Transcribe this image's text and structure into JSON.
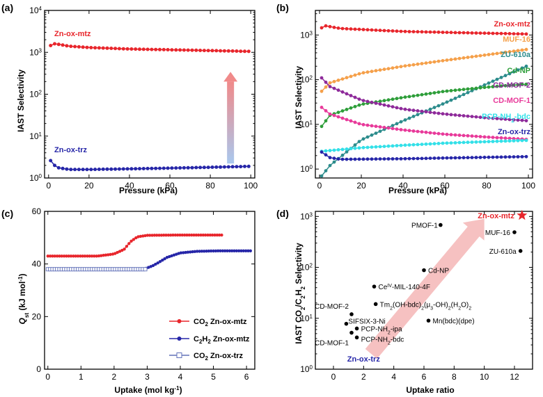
{
  "chart_data": [
    {
      "type": "line",
      "panel": "(a)",
      "xlabel": "Pressure (kPa)",
      "ylabel": "IAST Selectivity",
      "xlim": [
        -2,
        102
      ],
      "ylim_log10": [
        0,
        4
      ],
      "xticks": [
        0,
        20,
        40,
        60,
        80,
        100
      ],
      "yticks": [
        {
          "exp": 0,
          "label": "10^0"
        },
        {
          "exp": 1,
          "label": "10^1"
        },
        {
          "exp": 2,
          "label": "10^2"
        },
        {
          "exp": 3,
          "label": "10^3"
        },
        {
          "exp": 4,
          "label": "10^4"
        }
      ],
      "series": [
        {
          "name": "Zn-ox-mtz",
          "color": "#e8262c",
          "points": [
            [
              1,
              1450
            ],
            [
              3,
              1600
            ],
            [
              5,
              1550
            ],
            [
              10,
              1400
            ],
            [
              20,
              1300
            ],
            [
              40,
              1200
            ],
            [
              60,
              1150
            ],
            [
              80,
              1100
            ],
            [
              100,
              1050
            ]
          ]
        },
        {
          "name": "Zn-ox-trz",
          "color": "#2626a8",
          "points": [
            [
              1,
              2.6
            ],
            [
              3,
              2.0
            ],
            [
              5,
              1.75
            ],
            [
              10,
              1.6
            ],
            [
              20,
              1.6
            ],
            [
              40,
              1.65
            ],
            [
              60,
              1.72
            ],
            [
              80,
              1.8
            ],
            [
              100,
              1.9
            ]
          ]
        }
      ],
      "annotation": "gradient arrow from Zn-ox-trz up to Zn-ox-mtz at ~90 kPa"
    },
    {
      "type": "line",
      "panel": "(b)",
      "xlabel": "Pressure (kPa)",
      "ylabel": "IAST Selectivity",
      "xlim": [
        -2,
        102
      ],
      "ylim_log10": [
        -0.2,
        3.55
      ],
      "xticks": [
        0,
        20,
        40,
        60,
        80,
        100
      ],
      "yticks": [
        {
          "exp": 0,
          "label": "10^0"
        },
        {
          "exp": 1,
          "label": "10^1"
        },
        {
          "exp": 2,
          "label": "10^2"
        },
        {
          "exp": 3,
          "label": "10^3"
        }
      ],
      "series": [
        {
          "name": "Zn-ox-mtz",
          "color": "#e8262c",
          "points": [
            [
              1,
              1450
            ],
            [
              3,
              1600
            ],
            [
              10,
              1400
            ],
            [
              40,
              1200
            ],
            [
              70,
              1120
            ],
            [
              100,
              1050
            ]
          ]
        },
        {
          "name": "MUF-16",
          "color": "#f5a04a",
          "points": [
            [
              1,
              55
            ],
            [
              5,
              85
            ],
            [
              20,
              140
            ],
            [
              40,
              200
            ],
            [
              60,
              270
            ],
            [
              80,
              360
            ],
            [
              100,
              480
            ]
          ]
        },
        {
          "name": "ZU-610a",
          "color": "#2c8c8c",
          "points": [
            [
              1,
              0.7
            ],
            [
              5,
              1.2
            ],
            [
              20,
              4.5
            ],
            [
              40,
              12
            ],
            [
              60,
              30
            ],
            [
              80,
              80
            ],
            [
              100,
              210
            ]
          ]
        },
        {
          "name": "Cd-NP",
          "color": "#2e9e3a",
          "points": [
            [
              1,
              9
            ],
            [
              5,
              16
            ],
            [
              20,
              28
            ],
            [
              40,
              40
            ],
            [
              60,
              55
            ],
            [
              80,
              68
            ],
            [
              100,
              80
            ]
          ]
        },
        {
          "name": "CD-MOF-2",
          "color": "#8e2a9a",
          "points": [
            [
              1,
              110
            ],
            [
              5,
              70
            ],
            [
              20,
              35
            ],
            [
              40,
              22
            ],
            [
              60,
              17
            ],
            [
              80,
              14
            ],
            [
              100,
              12
            ]
          ]
        },
        {
          "name": "CD-MOF-1",
          "color": "#e83a9a",
          "points": [
            [
              1,
              24
            ],
            [
              5,
              17
            ],
            [
              20,
              10
            ],
            [
              40,
              7.5
            ],
            [
              60,
              6
            ],
            [
              80,
              5.2
            ],
            [
              100,
              4.6
            ]
          ]
        },
        {
          "name": "PCP-NH2-bdc",
          "color": "#33e0e8",
          "points": [
            [
              1,
              2.5
            ],
            [
              20,
              3.0
            ],
            [
              40,
              3.4
            ],
            [
              60,
              3.8
            ],
            [
              80,
              4.1
            ],
            [
              100,
              4.4
            ]
          ]
        },
        {
          "name": "Zn-ox-trz",
          "color": "#2626a8",
          "points": [
            [
              1,
              2.4
            ],
            [
              5,
              1.8
            ],
            [
              10,
              1.65
            ],
            [
              40,
              1.7
            ],
            [
              70,
              1.8
            ],
            [
              100,
              1.9
            ]
          ]
        }
      ],
      "legend_labels": [
        "Zn-ox-mtz",
        "MUF-16",
        "ZU-610a",
        "Cd-NP",
        "CD-MOF-2",
        "CD-MOF-1",
        "PCP-NH2-bdc",
        "Zn-ox-trz"
      ]
    },
    {
      "type": "line",
      "panel": "(c)",
      "xlabel": "Uptake (mol kg-1)",
      "ylabel": "Qst (kJ mol-1)",
      "xlim": [
        -0.1,
        6.25
      ],
      "ylim": [
        0,
        60
      ],
      "xticks": [
        0,
        1,
        2,
        3,
        4,
        5,
        6
      ],
      "yticks": [
        0,
        20,
        40,
        60
      ],
      "series": [
        {
          "name": "CO2 Zn-ox-mtz",
          "color": "#e8262c",
          "points": [
            [
              0,
              43
            ],
            [
              1.5,
              43
            ],
            [
              2.0,
              43.8
            ],
            [
              2.3,
              45.5
            ],
            [
              2.5,
              48.5
            ],
            [
              2.7,
              50.3
            ],
            [
              3.0,
              50.9
            ],
            [
              4.0,
              51
            ],
            [
              5.25,
              51
            ]
          ]
        },
        {
          "name": "C2H2 Zn-ox-mtz",
          "color": "#2626a8",
          "points": [
            [
              2.9,
              38
            ],
            [
              3.2,
              39.5
            ],
            [
              3.6,
              42.5
            ],
            [
              4.0,
              44.2
            ],
            [
              4.5,
              44.8
            ],
            [
              5.2,
              45
            ],
            [
              6.15,
              45
            ]
          ]
        },
        {
          "name": "CO2 Zn-ox-trz",
          "color": "#6070b8",
          "points": [
            [
              0,
              38
            ],
            [
              1,
              38
            ],
            [
              2,
              38
            ],
            [
              2.95,
              38
            ]
          ]
        }
      ],
      "legend": [
        "CO2 Zn-ox-mtz",
        "C2H2 Zn-ox-mtz",
        "CO2 Zn-ox-trz"
      ]
    },
    {
      "type": "scatter",
      "panel": "(d)",
      "xlabel": "Uptake ratio",
      "ylabel": "IAST CO2/C2H2 Selectivity",
      "xlim": [
        -1.2,
        13.2
      ],
      "ylim_log10": [
        0,
        3.1
      ],
      "xticks": [
        0,
        2,
        4,
        6,
        8,
        10,
        12
      ],
      "yticks": [
        {
          "exp": 0,
          "label": "10^0"
        },
        {
          "exp": 1,
          "label": "10^1"
        },
        {
          "exp": 2,
          "label": "10^2"
        },
        {
          "exp": 3,
          "label": "10^3"
        }
      ],
      "points": [
        {
          "name": "PMOF-1",
          "x": 7.1,
          "y": 680
        },
        {
          "name": "MUF-16",
          "x": 12.0,
          "y": 490
        },
        {
          "name": "ZU-610a",
          "x": 12.4,
          "y": 210
        },
        {
          "name": "Cd-NP",
          "x": 6.0,
          "y": 88
        },
        {
          "name": "CeIV-MIL-140-4F",
          "x": 2.7,
          "y": 42
        },
        {
          "name": "Tm2(OH-bdc)2(μ3-OH)2(H2O)2",
          "x": 2.8,
          "y": 19
        },
        {
          "name": "Mn(bdc)(dpe)",
          "x": 6.3,
          "y": 9
        },
        {
          "name": "CD-MOF-2",
          "x": 1.2,
          "y": 12
        },
        {
          "name": "SIFSIX-3-Ni",
          "x": 0.85,
          "y": 7.8
        },
        {
          "name": "PCP-NH2-ipa",
          "x": 1.55,
          "y": 6.3
        },
        {
          "name": "CD-MOF-1",
          "x": 1.2,
          "y": 5.2
        },
        {
          "name": "PCP-NH2-bdc",
          "x": 1.55,
          "y": 4.2
        },
        {
          "name": "Zn-ox-mtz",
          "x": 12.5,
          "y": 1050,
          "highlight": true
        },
        {
          "name": "Zn-ox-trz",
          "x": 2.0,
          "y": 1.6,
          "label_only": true
        }
      ],
      "annotation": "pink arrow from ~(2.5, 2) to ~(10, 900)"
    }
  ],
  "panel_labels": [
    "(a)",
    "(b)",
    "(c)",
    "(d)"
  ],
  "text": {
    "a_mtz": "Zn-ox-mtz",
    "a_trz": "Zn-ox-trz",
    "a_xlabel": "Pressure (kPa)",
    "a_ylabel": "IAST Selectivity",
    "b_xlabel": "Pressure (kPa)",
    "b_ylabel": "IAST Selectivity",
    "c_xlabel_main": "Uptake (mol kg",
    "c_xlabel_sup": "-1",
    "c_xlabel_end": ")",
    "c_ylabel_q": "Q",
    "c_ylabel_sub": "st",
    "c_ylabel_mid": " (kJ mol",
    "c_ylabel_sup": "-1",
    "c_ylabel_end": ")",
    "d_xlabel": "Uptake ratio",
    "d_ylabel_a": "IAST CO",
    "d_ylabel_s1": "2",
    "d_ylabel_b": "/C",
    "d_ylabel_s2": "2",
    "d_ylabel_c": "H",
    "d_ylabel_s3": "2",
    "d_ylabel_d": " Selectivity",
    "legend_c": [
      "CO2 Zn-ox-mtz",
      "C2H2 Zn-ox-mtz",
      "CO2 Zn-ox-trz"
    ]
  },
  "colors": {
    "red": "#e8262c",
    "blue": "#2626a8",
    "arrow_pink": "#f4b6b6"
  }
}
